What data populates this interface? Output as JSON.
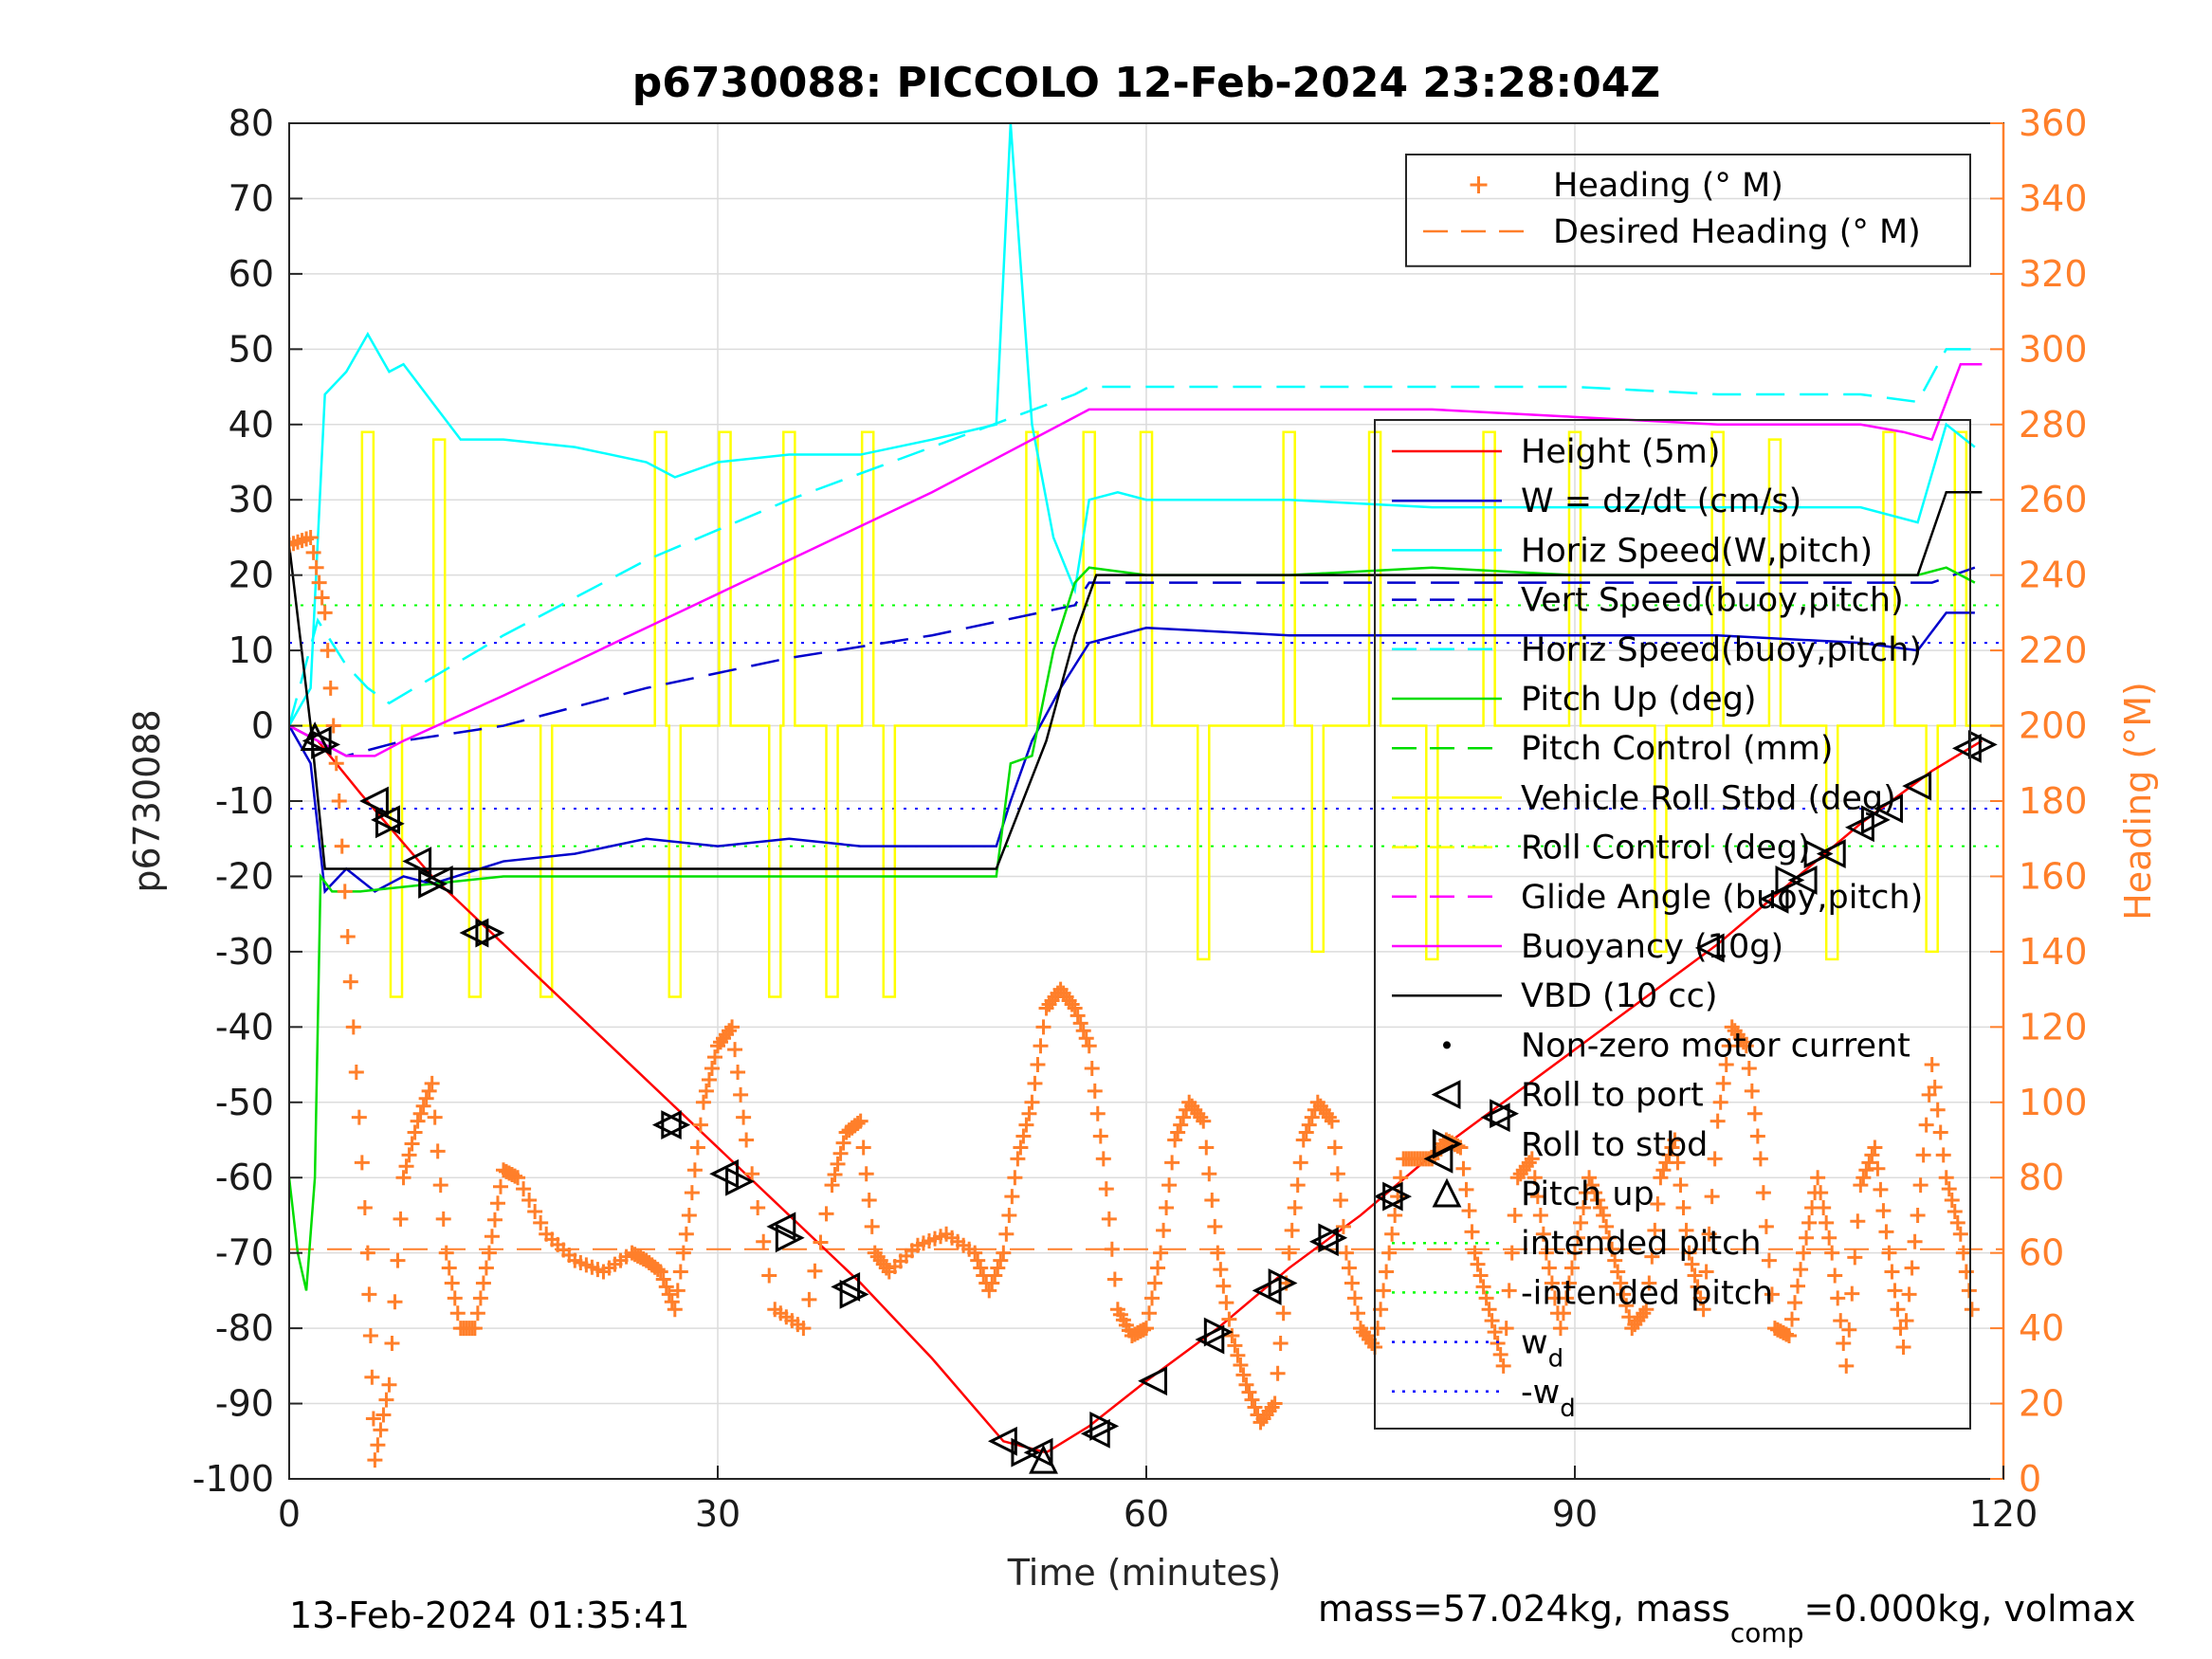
{
  "chart_data": {
    "type": "line",
    "title": "p6730088: PICCOLO 12-Feb-2024 23:28:04Z",
    "xlabel": "Time (minutes)",
    "ylabel": "p6730088",
    "ylabel_right": "Heading (°M)",
    "xlim": [
      0,
      120
    ],
    "ylim": [
      -100,
      80
    ],
    "ylim_right": [
      0,
      360
    ],
    "xticks": [
      "0",
      "30",
      "60",
      "90",
      "120"
    ],
    "yticks": [
      "80",
      "70",
      "60",
      "50",
      "40",
      "30",
      "20",
      "10",
      "0",
      "-10",
      "-20",
      "-30",
      "-40",
      "-50",
      "-60",
      "-70",
      "-80",
      "-90",
      "-100"
    ],
    "yticks_right": [
      "360",
      "340",
      "320",
      "300",
      "280",
      "260",
      "240",
      "220",
      "200",
      "180",
      "160",
      "140",
      "120",
      "100",
      "80",
      "60",
      "40",
      "20",
      "0"
    ],
    "grid": true,
    "footer_left": "13-Feb-2024 01:35:41",
    "footer_right": {
      "part1": "mass=57.024kg, mass",
      "sub": "comp",
      "part2": "=0.000kg, volmax"
    },
    "legend_top": {
      "placement": "top-right",
      "entries": [
        {
          "name": "Heading (° M)",
          "color": "#ff7f2a",
          "style": "plus"
        },
        {
          "name": "Desired Heading (° M)",
          "color": "#ff7f2a",
          "style": "dash"
        }
      ]
    },
    "legend_main": {
      "placement": "right",
      "entries": [
        {
          "name": "Height (5m)",
          "color": "#ff0000",
          "style": "solid"
        },
        {
          "name": "W = dz/dt (cm/s)",
          "color": "#0000cc",
          "style": "solid"
        },
        {
          "name": "Horiz Speed(W,pitch)",
          "color": "#00ffff",
          "style": "solid"
        },
        {
          "name": "Vert Speed(buoy,pitch)",
          "color": "#0000cc",
          "style": "dash"
        },
        {
          "name": "Horiz Speed(buoy,pitch)",
          "color": "#00ffff",
          "style": "dash"
        },
        {
          "name": "Pitch Up (deg)",
          "color": "#00dd00",
          "style": "solid"
        },
        {
          "name": "Pitch Control (mm)",
          "color": "#00dd00",
          "style": "dash"
        },
        {
          "name": "Vehicle Roll Stbd (deg)",
          "color": "#ffff00",
          "style": "solid"
        },
        {
          "name": "Roll Control (deg)",
          "color": "#ffff00",
          "style": "dash"
        },
        {
          "name": "Glide Angle (buoy,pitch)",
          "color": "#ff00ff",
          "style": "dash"
        },
        {
          "name": "Buoyancy (10g)",
          "color": "#ff00ff",
          "style": "solid"
        },
        {
          "name": "VBD (10 cc)",
          "color": "#000000",
          "style": "solid"
        },
        {
          "name": "Non-zero motor current",
          "color": "#000000",
          "style": "dot-marker"
        },
        {
          "name": "Roll to port",
          "color": "#000000",
          "style": "tri-left"
        },
        {
          "name": "Roll to stbd",
          "color": "#000000",
          "style": "tri-right"
        },
        {
          "name": "Pitch up",
          "color": "#000000",
          "style": "tri-up"
        },
        {
          "name": "intended pitch",
          "color": "#00ff00",
          "style": "dotted"
        },
        {
          "name": "-intended pitch",
          "color": "#00ff00",
          "style": "dotted"
        },
        {
          "name": "w",
          "sub": "d",
          "color": "#0000ff",
          "style": "dotted"
        },
        {
          "name": "-w",
          "sub": "d",
          "color": "#0000ff",
          "style": "dotted"
        }
      ]
    },
    "series": [
      {
        "name": "Height (5m)",
        "axis": "left",
        "color": "#ff0000",
        "x": [
          0,
          2,
          5,
          10,
          15,
          20,
          25,
          30,
          35,
          40,
          45,
          50,
          53,
          56,
          60,
          65,
          70,
          75,
          80,
          85,
          90,
          95,
          100,
          105,
          110,
          115,
          118.5
        ],
        "y": [
          0,
          -2,
          -9,
          -20,
          -29,
          -38,
          -47,
          -56,
          -65,
          -74,
          -84,
          -95,
          -96.5,
          -93,
          -87,
          -80,
          -72,
          -65,
          -57,
          -50,
          -43,
          -36,
          -29,
          -21,
          -13,
          -6,
          -2
        ]
      },
      {
        "name": "W = dz/dt (cm/s)",
        "axis": "left",
        "color": "#0000cc",
        "x": [
          0,
          1.5,
          2.5,
          4,
          6,
          8,
          10,
          15,
          20,
          25,
          30,
          35,
          40,
          45,
          49.5,
          50.5,
          52,
          54,
          56,
          60,
          70,
          80,
          90,
          100,
          110,
          114,
          116,
          118
        ],
        "y": [
          0,
          -5,
          -22,
          -19,
          -22,
          -20,
          -21,
          -18,
          -17,
          -15,
          -16,
          -15,
          -16,
          -16,
          -16,
          -10,
          -2,
          5,
          11,
          13,
          12,
          12,
          12,
          12,
          11,
          10,
          15,
          15
        ]
      },
      {
        "name": "Horiz Speed(W,pitch)",
        "axis": "left",
        "color": "#00ffff",
        "x": [
          0,
          1.5,
          2.5,
          4,
          5.5,
          7,
          8,
          10,
          12,
          15,
          20,
          25,
          27,
          30,
          35,
          40,
          45,
          49.5,
          50.5,
          52,
          53.5,
          55,
          56,
          58,
          60,
          70,
          80,
          90,
          100,
          110,
          114,
          116,
          118
        ],
        "y": [
          0,
          5,
          44,
          47,
          52,
          47,
          48,
          43,
          38,
          38,
          37,
          35,
          33,
          35,
          36,
          36,
          38,
          40,
          80,
          40,
          25,
          18,
          30,
          31,
          30,
          30,
          29,
          29,
          29,
          29,
          27,
          40,
          37
        ]
      },
      {
        "name": "Vert Speed(buoy,pitch)",
        "axis": "left",
        "color": "#0000cc",
        "dash": true,
        "x": [
          0,
          2,
          4,
          8,
          15,
          25,
          35,
          45,
          55,
          56,
          60,
          70,
          80,
          90,
          100,
          110,
          115,
          118
        ],
        "y": [
          0,
          -2,
          -4,
          -2,
          0,
          5,
          9,
          12,
          16,
          19,
          19,
          19,
          19,
          19,
          19,
          19,
          19,
          21
        ]
      },
      {
        "name": "Horiz Speed(buoy,pitch)",
        "axis": "left",
        "color": "#00ffff",
        "dash": true,
        "x": [
          0,
          2,
          4,
          5.5,
          7,
          15,
          25,
          35,
          45,
          55,
          56,
          60,
          70,
          80,
          90,
          100,
          110,
          114,
          116,
          118
        ],
        "y": [
          0,
          14,
          8,
          5,
          3,
          12,
          22,
          30,
          37,
          44,
          45,
          45,
          45,
          45,
          45,
          44,
          44,
          43,
          50,
          50
        ]
      },
      {
        "name": "Pitch Up (deg)",
        "axis": "left",
        "color": "#00dd00",
        "x": [
          0,
          0.6,
          1.2,
          1.8,
          2.2,
          2.6,
          3,
          5,
          10,
          15,
          20,
          25,
          30,
          35,
          40,
          45,
          49.5,
          50.5,
          52,
          53.5,
          55,
          56,
          60,
          70,
          80,
          90,
          100,
          110,
          114,
          116,
          118
        ],
        "y": [
          -60,
          -70,
          -75,
          -60,
          -20,
          -21,
          -22,
          -22,
          -21,
          -20,
          -20,
          -20,
          -20,
          -20,
          -20,
          -20,
          -20,
          -5,
          -4,
          10,
          19,
          21,
          20,
          20,
          21,
          20,
          20,
          20,
          20,
          21,
          19
        ]
      },
      {
        "name": "Buoyancy (10g)",
        "axis": "left",
        "color": "#ff00ff",
        "x": [
          0,
          2,
          4,
          6,
          8,
          15,
          25,
          35,
          45,
          55,
          56,
          60,
          70,
          80,
          90,
          100,
          105,
          110,
          113,
          115,
          116,
          117,
          118.5
        ],
        "y": [
          0,
          -2,
          -4,
          -4,
          -2,
          4,
          13,
          22,
          31,
          41,
          42,
          42,
          42,
          42,
          41,
          40,
          40,
          40,
          39,
          38,
          43,
          48,
          48
        ]
      },
      {
        "name": "VBD (10 cc)",
        "axis": "left",
        "color": "#000000",
        "x": [
          0,
          1.5,
          2.5,
          4,
          10,
          20,
          30,
          40,
          49.5,
          53,
          55,
          56.5,
          60,
          70,
          80,
          90,
          100,
          110,
          114,
          116,
          118.5
        ],
        "y": [
          24,
          0,
          -19,
          -19,
          -19,
          -19,
          -19,
          -19,
          -19,
          -2,
          12,
          20,
          20,
          20,
          20,
          20,
          20,
          20,
          20,
          31,
          31
        ]
      },
      {
        "name": "Heading (° M)",
        "axis": "right",
        "color": "#ff7f2a",
        "marker": "plus",
        "x": [
          0,
          1.5,
          2.5,
          3.5,
          4.5,
          5.5,
          6,
          7,
          8,
          9,
          10,
          11,
          12,
          13,
          14,
          15,
          16,
          18,
          20,
          22,
          24,
          25,
          26,
          27,
          28,
          29,
          30,
          31,
          32,
          34,
          36,
          38,
          39,
          40,
          41,
          42,
          44,
          46,
          48,
          49,
          50,
          51,
          52,
          53,
          54,
          55,
          56,
          57,
          58,
          59,
          60,
          61,
          62,
          63,
          64,
          65,
          66,
          67,
          68,
          69,
          70,
          71,
          72,
          73,
          74,
          75,
          76,
          77,
          78,
          79,
          80,
          81,
          82,
          83,
          84,
          85,
          86,
          87,
          88,
          89,
          90,
          91,
          92,
          93,
          94,
          95,
          96,
          97,
          98,
          99,
          100,
          101,
          102,
          103,
          104,
          105,
          106,
          107,
          108,
          109,
          110,
          111,
          112,
          113,
          114,
          115,
          116,
          117,
          118
        ],
        "y": [
          248,
          250,
          230,
          180,
          120,
          60,
          5,
          25,
          80,
          95,
          105,
          60,
          40,
          40,
          60,
          82,
          80,
          65,
          58,
          55,
          60,
          58,
          55,
          45,
          70,
          100,
          115,
          120,
          90,
          45,
          40,
          78,
          92,
          95,
          60,
          55,
          62,
          65,
          60,
          50,
          60,
          85,
          100,
          125,
          130,
          125,
          115,
          85,
          45,
          38,
          40,
          60,
          90,
          100,
          95,
          60,
          38,
          25,
          15,
          20,
          60,
          90,
          100,
          95,
          60,
          40,
          35,
          60,
          85,
          85,
          85,
          90,
          88,
          60,
          45,
          30,
          80,
          85,
          60,
          40,
          60,
          80,
          70,
          55,
          40,
          45,
          80,
          90,
          60,
          45,
          95,
          120,
          115,
          85,
          40,
          38,
          60,
          80,
          60,
          30,
          78,
          88,
          60,
          35,
          70,
          110,
          80,
          65,
          40
        ]
      }
    ],
    "constant_lines": [
      {
        "name": "Desired Heading (° M)",
        "axis": "right",
        "value": 61,
        "color": "#ff7f2a",
        "style": "dash"
      },
      {
        "name": "intended pitch",
        "axis": "left",
        "value": 16,
        "color": "#00ff00",
        "style": "dotted"
      },
      {
        "name": "-intended pitch",
        "axis": "left",
        "value": -16,
        "color": "#00ff00",
        "style": "dotted"
      },
      {
        "name": "w_d",
        "axis": "left",
        "value": 11,
        "color": "#0000ff",
        "style": "dotted"
      },
      {
        "name": "-w_d",
        "axis": "left",
        "value": -11,
        "color": "#0000ff",
        "style": "dotted"
      }
    ],
    "roll_stbd_pulses": [
      [
        5.5,
        39
      ],
      [
        7.5,
        -36
      ],
      [
        10.5,
        38
      ],
      [
        13,
        -36
      ],
      [
        18,
        -36
      ],
      [
        26,
        39
      ],
      [
        27,
        -36
      ],
      [
        30.5,
        39
      ],
      [
        34,
        -36
      ],
      [
        35,
        39
      ],
      [
        38,
        -36
      ],
      [
        40.5,
        39
      ],
      [
        42,
        -36
      ],
      [
        52,
        39
      ],
      [
        56,
        39
      ],
      [
        60,
        39
      ],
      [
        64,
        -31
      ],
      [
        70,
        39
      ],
      [
        72,
        -30
      ],
      [
        76,
        39
      ],
      [
        80,
        -31
      ],
      [
        84,
        39
      ],
      [
        90,
        39
      ],
      [
        96,
        -30
      ],
      [
        100,
        39
      ],
      [
        104,
        38
      ],
      [
        108,
        -31
      ],
      [
        112,
        39
      ],
      [
        115,
        -30
      ],
      [
        117,
        39
      ]
    ],
    "roll_port_markers": [
      [
        2,
        -2
      ],
      [
        6,
        -10
      ],
      [
        6.8,
        -12.5
      ],
      [
        9,
        -18
      ],
      [
        10.5,
        -20.5
      ],
      [
        13,
        -27.5
      ],
      [
        26.5,
        -53
      ],
      [
        30.5,
        -59.5
      ],
      [
        34.5,
        -66.5
      ],
      [
        39,
        -74.5
      ],
      [
        50,
        -95
      ],
      [
        52.5,
        -96.5
      ],
      [
        56.5,
        -94
      ],
      [
        60.5,
        -87
      ],
      [
        64.5,
        -81.5
      ],
      [
        68.5,
        -75
      ],
      [
        72.5,
        -68.5
      ],
      [
        77,
        -62.5
      ],
      [
        80.5,
        -57.5
      ],
      [
        84.5,
        -52
      ],
      [
        99.5,
        -29.5
      ],
      [
        104,
        -23
      ],
      [
        106,
        -20.5
      ],
      [
        108,
        -17
      ],
      [
        110,
        -13.5
      ],
      [
        112,
        -11
      ],
      [
        114,
        -8
      ],
      [
        117.5,
        -3
      ]
    ],
    "roll_stbd_markers": [
      [
        2.5,
        -2.5
      ],
      [
        7,
        -13
      ],
      [
        10,
        -21
      ],
      [
        14,
        -27.5
      ],
      [
        27,
        -53
      ],
      [
        31.5,
        -60.5
      ],
      [
        35,
        -68
      ],
      [
        39.5,
        -75.5
      ],
      [
        51.5,
        -96.5
      ],
      [
        57,
        -93
      ],
      [
        65,
        -80.5
      ],
      [
        69.5,
        -74
      ],
      [
        73,
        -68
      ],
      [
        77.5,
        -62.5
      ],
      [
        81,
        -55.5
      ],
      [
        85,
        -51.5
      ],
      [
        105,
        -20.5
      ],
      [
        107,
        -17
      ],
      [
        111,
        -12.5
      ],
      [
        118.5,
        -2.5
      ]
    ],
    "pitch_up_markers": [
      [
        1.8,
        -1.5
      ],
      [
        52.8,
        -97.5
      ]
    ]
  }
}
